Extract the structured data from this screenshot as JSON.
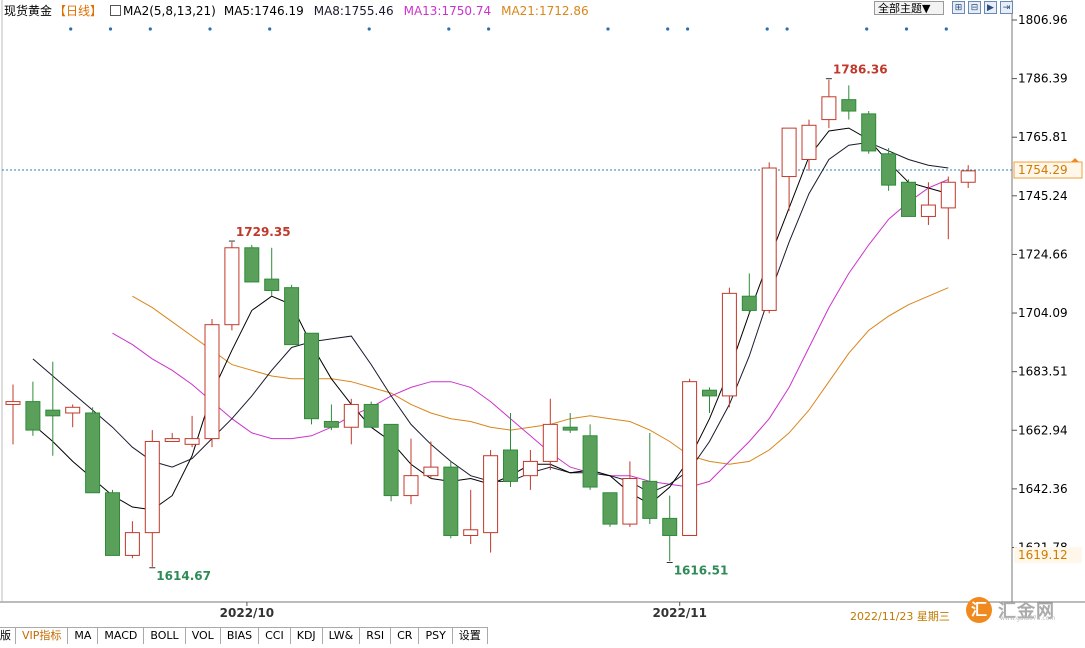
{
  "header": {
    "symbol": "现货黄金",
    "period": "【日线】",
    "ma_title": "MA2(5,8,13,21)",
    "ma_items": [
      {
        "label": "MA5:1746.19",
        "color": "#000000"
      },
      {
        "label": "MA8:1755.46",
        "color": "#1a1a2e"
      },
      {
        "label": "MA13:1750.74",
        "color": "#cc33cc"
      },
      {
        "label": "MA21:1712.86",
        "color": "#d9861a"
      }
    ]
  },
  "toolbar": {
    "theme_label": "全部主题▼",
    "buttons": [
      "⊞",
      "⊟",
      "▶",
      "⇥"
    ]
  },
  "tabs": [
    "版",
    "VIP指标",
    "MA",
    "MACD",
    "BOLL",
    "VOL",
    "BIAS",
    "CCI",
    "KDJ",
    "LW&",
    "RSI",
    "CR",
    "PSY",
    "设置"
  ],
  "footer": {
    "date": "2022/11/23 星期三",
    "logo_char": "汇",
    "logo_text": "汇金网",
    "logo_url": "www.gold678.com"
  },
  "chart_data": {
    "type": "candlestick",
    "y_ticks": [
      1806.96,
      1786.39,
      1765.81,
      1745.24,
      1724.66,
      1704.09,
      1683.51,
      1662.94,
      1642.36,
      1621.78
    ],
    "ylim": [
      1611,
      1810
    ],
    "x_labels": [
      {
        "label": "2022/10",
        "index": 11
      },
      {
        "label": "2022/11",
        "index": 33
      }
    ],
    "current_price": 1754.29,
    "low_marker": 1619.12,
    "annotations": [
      {
        "label": "1614.67",
        "index": 7,
        "value": 1614.67,
        "color": "#2e8b57"
      },
      {
        "label": "1729.35",
        "index": 11,
        "value": 1729.35,
        "color": "#c0392b"
      },
      {
        "label": "1616.51",
        "index": 33,
        "value": 1616.51,
        "color": "#2e8b57"
      },
      {
        "label": "1786.36",
        "index": 41,
        "value": 1786.36,
        "color": "#c0392b"
      }
    ],
    "candles": [
      {
        "o": 1672,
        "h": 1679,
        "l": 1658,
        "c": 1673
      },
      {
        "o": 1673,
        "h": 1680,
        "l": 1661,
        "c": 1663
      },
      {
        "o": 1670,
        "h": 1687,
        "l": 1654,
        "c": 1668
      },
      {
        "o": 1669,
        "h": 1672,
        "l": 1664,
        "c": 1671
      },
      {
        "o": 1669,
        "h": 1671,
        "l": 1641,
        "c": 1641
      },
      {
        "o": 1641,
        "h": 1642,
        "l": 1619,
        "c": 1619
      },
      {
        "o": 1619,
        "h": 1631,
        "l": 1618,
        "c": 1627
      },
      {
        "o": 1627,
        "h": 1663,
        "l": 1615,
        "c": 1659
      },
      {
        "o": 1659,
        "h": 1662,
        "l": 1659,
        "c": 1660
      },
      {
        "o": 1658,
        "h": 1668,
        "l": 1657,
        "c": 1660
      },
      {
        "o": 1660,
        "h": 1702,
        "l": 1657,
        "c": 1700
      },
      {
        "o": 1700,
        "h": 1729,
        "l": 1698,
        "c": 1727
      },
      {
        "o": 1727,
        "h": 1728,
        "l": 1715,
        "c": 1715
      },
      {
        "o": 1716,
        "h": 1727,
        "l": 1710,
        "c": 1712
      },
      {
        "o": 1713,
        "h": 1714,
        "l": 1693,
        "c": 1693
      },
      {
        "o": 1697,
        "h": 1697,
        "l": 1665,
        "c": 1667
      },
      {
        "o": 1666,
        "h": 1672,
        "l": 1663,
        "c": 1664
      },
      {
        "o": 1664,
        "h": 1674,
        "l": 1658,
        "c": 1672
      },
      {
        "o": 1672,
        "h": 1673,
        "l": 1664,
        "c": 1664
      },
      {
        "o": 1665,
        "h": 1665,
        "l": 1638,
        "c": 1640
      },
      {
        "o": 1640,
        "h": 1660,
        "l": 1637,
        "c": 1647
      },
      {
        "o": 1647,
        "h": 1659,
        "l": 1646,
        "c": 1650
      },
      {
        "o": 1650,
        "h": 1652,
        "l": 1625,
        "c": 1626
      },
      {
        "o": 1626,
        "h": 1642,
        "l": 1623,
        "c": 1628
      },
      {
        "o": 1627,
        "h": 1656,
        "l": 1620,
        "c": 1654
      },
      {
        "o": 1656,
        "h": 1669,
        "l": 1643,
        "c": 1645
      },
      {
        "o": 1647,
        "h": 1656,
        "l": 1642,
        "c": 1652
      },
      {
        "o": 1652,
        "h": 1674,
        "l": 1649,
        "c": 1665
      },
      {
        "o": 1664,
        "h": 1669,
        "l": 1662,
        "c": 1663
      },
      {
        "o": 1661,
        "h": 1665,
        "l": 1642,
        "c": 1643
      },
      {
        "o": 1641,
        "h": 1641,
        "l": 1629,
        "c": 1630
      },
      {
        "o": 1630,
        "h": 1652,
        "l": 1629,
        "c": 1646
      },
      {
        "o": 1645,
        "h": 1662,
        "l": 1630,
        "c": 1632
      },
      {
        "o": 1632,
        "h": 1640,
        "l": 1617,
        "c": 1626
      },
      {
        "o": 1626,
        "h": 1681,
        "l": 1626,
        "c": 1680
      },
      {
        "o": 1677,
        "h": 1678,
        "l": 1669,
        "c": 1675
      },
      {
        "o": 1675,
        "h": 1713,
        "l": 1671,
        "c": 1711
      },
      {
        "o": 1710,
        "h": 1718,
        "l": 1704,
        "c": 1705
      },
      {
        "o": 1705,
        "h": 1757,
        "l": 1704,
        "c": 1755
      },
      {
        "o": 1752,
        "h": 1769,
        "l": 1740,
        "c": 1769
      },
      {
        "o": 1758,
        "h": 1772,
        "l": 1754,
        "c": 1770
      },
      {
        "o": 1772,
        "h": 1786,
        "l": 1769,
        "c": 1780
      },
      {
        "o": 1779,
        "h": 1784,
        "l": 1772,
        "c": 1775
      },
      {
        "o": 1774,
        "h": 1775,
        "l": 1760,
        "c": 1761
      },
      {
        "o": 1760,
        "h": 1762,
        "l": 1747,
        "c": 1749
      },
      {
        "o": 1750,
        "h": 1751,
        "l": 1738,
        "c": 1738
      },
      {
        "o": 1738,
        "h": 1750,
        "l": 1735,
        "c": 1742
      },
      {
        "o": 1741,
        "h": 1752,
        "l": 1730,
        "c": 1750
      },
      {
        "o": 1750,
        "h": 1756,
        "l": 1748,
        "c": 1754
      }
    ],
    "ma5": [
      1665,
      1659,
      1652,
      1646,
      1640,
      1636,
      1635,
      1640,
      1654,
      1676,
      1691,
      1705,
      1710,
      1707,
      1693,
      1681,
      1672,
      1664,
      1659,
      1651,
      1646,
      1645,
      1646,
      1644,
      1647,
      1651,
      1651,
      1648,
      1649,
      1647,
      1641,
      1637,
      1643,
      1653,
      1667,
      1684,
      1704,
      1723,
      1741,
      1759,
      1768,
      1769,
      1765,
      1757,
      1750,
      1748,
      1746
    ],
    "ma8": [
      1688,
      1682,
      1676,
      1670,
      1664,
      1657,
      1652,
      1650,
      1653,
      1660,
      1667,
      1675,
      1684,
      1692,
      1694,
      1695,
      1696,
      1686,
      1675,
      1665,
      1658,
      1652,
      1647,
      1645,
      1645,
      1648,
      1650,
      1648,
      1648,
      1647,
      1645,
      1641,
      1644,
      1649,
      1659,
      1672,
      1689,
      1710,
      1729,
      1746,
      1758,
      1763,
      1764,
      1761,
      1758,
      1756,
      1755
    ],
    "ma13": [
      1697,
      1693,
      1688,
      1684,
      1679,
      1673,
      1667,
      1662,
      1660,
      1660,
      1661,
      1664,
      1668,
      1671,
      1675,
      1678,
      1680,
      1680,
      1678,
      1673,
      1667,
      1661,
      1655,
      1650,
      1648,
      1647,
      1647,
      1645,
      1644,
      1643,
      1645,
      1652,
      1659,
      1667,
      1678,
      1692,
      1706,
      1718,
      1728,
      1737,
      1743,
      1748,
      1751
    ],
    "ma21": [
      1710,
      1706,
      1701,
      1696,
      1691,
      1686,
      1684,
      1682,
      1681,
      1681,
      1681,
      1680,
      1678,
      1676,
      1672,
      1669,
      1667,
      1666,
      1664,
      1663,
      1664,
      1665,
      1667,
      1668,
      1667,
      1666,
      1663,
      1659,
      1654,
      1652,
      1651,
      1652,
      1656,
      1662,
      1670,
      1680,
      1690,
      1698,
      1703,
      1707,
      1710,
      1713
    ]
  }
}
